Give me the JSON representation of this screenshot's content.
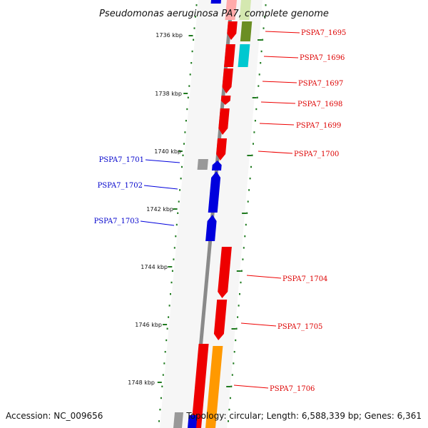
{
  "title": "Pseudomonas aeruginosa PA7, complete genome",
  "footer": {
    "accession": "Accession: NC_009656",
    "summary": "Topology: circular; Length: 6,588,339 bp; Genes: 6,361"
  },
  "scale_labels": [
    "1736 kbp",
    "1738 kbp",
    "1740 kbp",
    "1742 kbp",
    "1744 kbp",
    "1746 kbp",
    "1748 kbp"
  ],
  "colors": {
    "forward_strand": "#ee0000",
    "reverse_strand": "#0000dd",
    "backbone": "#888888",
    "tick": "#1f7a1f",
    "olive": "#6b8e23",
    "cyan": "#00c8d0",
    "orange": "#ff9900",
    "grey": "#999999"
  },
  "forward_genes": [
    "PSPA7_1695",
    "PSPA7_1696",
    "PSPA7_1697",
    "PSPA7_1698",
    "PSPA7_1699",
    "PSPA7_1700",
    "PSPA7_1704",
    "PSPA7_1705",
    "PSPA7_1706"
  ],
  "reverse_genes": [
    "PSPA7_1701",
    "PSPA7_1702",
    "PSPA7_1703"
  ]
}
